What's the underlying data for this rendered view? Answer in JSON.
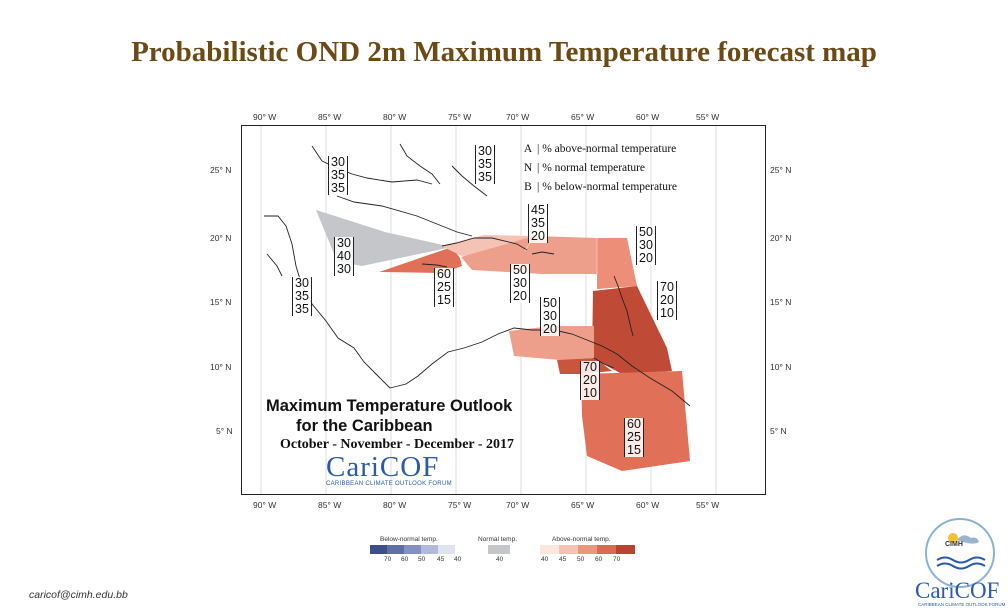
{
  "title": "Probabilistic OND 2m Maximum Temperature forecast map",
  "map": {
    "longitudes_top": [
      "90° W",
      "85° W",
      "80° W",
      "75° W",
      "70° W",
      "65° W",
      "60° W",
      "55° W"
    ],
    "longitudes_bottom": [
      "90° W",
      "85° W",
      "80° W",
      "75° W",
      "70° W",
      "65° W",
      "60° W",
      "55° W"
    ],
    "latitudes_left": [
      "25° N",
      "20° N",
      "15° N",
      "10° N",
      "5° N"
    ],
    "latitudes_right": [
      "25° N",
      "20° N",
      "15° N",
      "10° N",
      "5° N"
    ],
    "legend": [
      {
        "key": "A",
        "text": "% above-normal temperature"
      },
      {
        "key": "N",
        "text": "% normal temperature"
      },
      {
        "key": "B",
        "text": "% below-normal temperature"
      }
    ],
    "probability_boxes": [
      {
        "id": "bahamas-west",
        "a": "30",
        "n": "35",
        "b": "35"
      },
      {
        "id": "bahamas-east",
        "a": "30",
        "n": "35",
        "b": "35"
      },
      {
        "id": "cuba",
        "a": "30",
        "n": "40",
        "b": "30"
      },
      {
        "id": "belize",
        "a": "30",
        "n": "35",
        "b": "35"
      },
      {
        "id": "jamaica",
        "a": "60",
        "n": "25",
        "b": "15"
      },
      {
        "id": "hispaniola-north",
        "a": "45",
        "n": "35",
        "b": "20"
      },
      {
        "id": "hispaniola-south",
        "a": "50",
        "n": "30",
        "b": "20"
      },
      {
        "id": "abc-islands",
        "a": "50",
        "n": "30",
        "b": "20"
      },
      {
        "id": "northern-leewards",
        "a": "50",
        "n": "30",
        "b": "20"
      },
      {
        "id": "lesser-antilles",
        "a": "70",
        "n": "20",
        "b": "10"
      },
      {
        "id": "trinidad",
        "a": "70",
        "n": "20",
        "b": "10"
      },
      {
        "id": "guianas",
        "a": "60",
        "n": "25",
        "b": "15"
      }
    ],
    "region_colors": {
      "normal_gray": "#c4c6c9",
      "above_40": "#f6d8d0",
      "above_50": "#ee9f8b",
      "above_60": "#e07058",
      "above_70": "#bf4a36"
    }
  },
  "outlook": {
    "line1": "Maximum Temperature Outlook",
    "line2": "for the Caribbean",
    "season": "October - November - December - 2017",
    "logo": "CariCOF",
    "logo_sub": "CARIBBEAN CLIMATE OUTLOOK FORUM"
  },
  "color_scale": {
    "below_label": "Below-normal temp.",
    "normal_label": "Normal temp.",
    "above_label": "Above-normal temp.",
    "below_values": [
      "70",
      "60",
      "50",
      "45",
      "40"
    ],
    "normal_values": [
      "40"
    ],
    "above_values": [
      "40",
      "45",
      "50",
      "60",
      "70"
    ],
    "below_colors": [
      "#3c4f8a",
      "#5d6fa6",
      "#8491c0",
      "#b1badb",
      "#dfe3f0"
    ],
    "normal_color": "#c4c6c9",
    "above_colors": [
      "#fbe6e0",
      "#f4c3b6",
      "#ea977f",
      "#d96b52",
      "#b84331"
    ]
  },
  "footer": {
    "email": "caricof@cimh.edu.bb",
    "cimh_label": "CIMH",
    "logo": "CariCOF",
    "logo_sub": "CARIBBEAN CLIMATE OUTLOOK FORUM"
  }
}
